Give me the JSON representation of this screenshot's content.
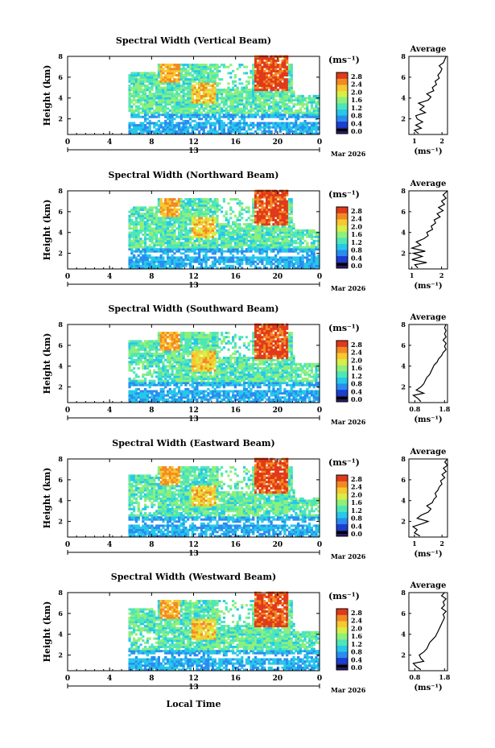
{
  "shared": {
    "x_ticks": [
      "0",
      "4",
      "8",
      "12",
      "16",
      "20",
      "0"
    ],
    "day_label": "13",
    "month_label": "Mar 2026",
    "ylabel": "Height (km)",
    "y_ticks": [
      "2",
      "4",
      "6",
      "8"
    ],
    "unit_label": "(ms⁻¹)",
    "colorbar_ticks": [
      "0.0",
      "0.4",
      "0.8",
      "1.2",
      "1.6",
      "2.0",
      "2.4",
      "2.8"
    ],
    "avg_title": "Average",
    "avg_unit": "(ms⁻¹)",
    "xlabel": "Local Time"
  },
  "colors": {
    "palette": [
      "#2a1a6e",
      "#1b3fd0",
      "#2a8cf0",
      "#27c8e8",
      "#4fe6b8",
      "#8ef07a",
      "#d8ee48",
      "#f8c830",
      "#f28a24",
      "#e03a1a"
    ]
  },
  "chart_data": [
    {
      "type": "heatmap",
      "title": "Spectral Width (Vertical Beam)",
      "avg_xticks": [
        "1",
        "2"
      ],
      "avg_xlim": [
        0.8,
        2.2
      ],
      "avg_profile": [
        [
          1.15,
          0.6
        ],
        [
          1.0,
          0.9
        ],
        [
          1.25,
          1.1
        ],
        [
          1.05,
          1.4
        ],
        [
          1.3,
          1.7
        ],
        [
          1.1,
          2.0
        ],
        [
          1.05,
          2.3
        ],
        [
          1.4,
          2.6
        ],
        [
          1.2,
          2.9
        ],
        [
          1.35,
          3.2
        ],
        [
          1.15,
          3.5
        ],
        [
          1.5,
          3.8
        ],
        [
          1.6,
          4.1
        ],
        [
          1.45,
          4.4
        ],
        [
          1.7,
          4.7
        ],
        [
          1.65,
          5.0
        ],
        [
          1.8,
          5.3
        ],
        [
          1.75,
          5.6
        ],
        [
          1.9,
          5.9
        ],
        [
          1.85,
          6.2
        ],
        [
          1.95,
          6.5
        ],
        [
          2.0,
          6.8
        ],
        [
          1.9,
          7.1
        ],
        [
          2.05,
          7.4
        ],
        [
          2.1,
          7.7
        ],
        [
          2.15,
          8.0
        ]
      ]
    },
    {
      "type": "heatmap",
      "title": "Spectral Width (Northward Beam)",
      "avg_xticks": [
        "1",
        "2"
      ],
      "avg_xlim": [
        0.9,
        2.2
      ],
      "avg_profile": [
        [
          1.2,
          0.6
        ],
        [
          1.1,
          0.9
        ],
        [
          1.5,
          1.1
        ],
        [
          1.0,
          1.4
        ],
        [
          1.35,
          1.7
        ],
        [
          1.05,
          2.0
        ],
        [
          1.45,
          2.2
        ],
        [
          1.0,
          2.5
        ],
        [
          1.3,
          2.8
        ],
        [
          1.15,
          3.1
        ],
        [
          1.4,
          3.4
        ],
        [
          1.55,
          3.7
        ],
        [
          1.5,
          4.0
        ],
        [
          1.7,
          4.3
        ],
        [
          1.65,
          4.6
        ],
        [
          1.8,
          4.9
        ],
        [
          1.75,
          5.2
        ],
        [
          1.95,
          5.5
        ],
        [
          1.85,
          5.8
        ],
        [
          2.05,
          6.1
        ],
        [
          1.9,
          6.4
        ],
        [
          2.1,
          6.7
        ],
        [
          2.0,
          7.0
        ],
        [
          2.15,
          7.3
        ],
        [
          2.05,
          7.6
        ],
        [
          2.2,
          8.0
        ]
      ]
    },
    {
      "type": "heatmap",
      "title": "Spectral Width (Southward Beam)",
      "avg_xticks": [
        "0.8",
        "1.8"
      ],
      "avg_xlim": [
        0.6,
        1.9
      ],
      "avg_profile": [
        [
          1.0,
          0.6
        ],
        [
          0.9,
          0.9
        ],
        [
          0.75,
          1.2
        ],
        [
          1.1,
          1.4
        ],
        [
          0.85,
          1.7
        ],
        [
          1.0,
          2.0
        ],
        [
          1.1,
          2.3
        ],
        [
          1.15,
          2.6
        ],
        [
          1.2,
          2.9
        ],
        [
          1.3,
          3.2
        ],
        [
          1.35,
          3.5
        ],
        [
          1.4,
          3.8
        ],
        [
          1.45,
          4.1
        ],
        [
          1.55,
          4.4
        ],
        [
          1.6,
          4.7
        ],
        [
          1.7,
          5.0
        ],
        [
          1.75,
          5.3
        ],
        [
          1.85,
          5.6
        ],
        [
          1.8,
          5.9
        ],
        [
          1.85,
          6.2
        ],
        [
          1.75,
          6.5
        ],
        [
          1.85,
          6.8
        ],
        [
          1.8,
          7.1
        ],
        [
          1.85,
          7.4
        ],
        [
          1.8,
          7.7
        ],
        [
          1.85,
          8.0
        ]
      ]
    },
    {
      "type": "heatmap",
      "title": "Spectral Width (Eastward Beam)",
      "avg_xticks": [
        "1",
        "2"
      ],
      "avg_xlim": [
        0.8,
        2.2
      ],
      "avg_profile": [
        [
          1.2,
          0.6
        ],
        [
          1.0,
          0.9
        ],
        [
          1.1,
          1.2
        ],
        [
          0.95,
          1.5
        ],
        [
          1.3,
          1.8
        ],
        [
          1.5,
          2.0
        ],
        [
          1.1,
          2.3
        ],
        [
          1.25,
          2.6
        ],
        [
          1.5,
          2.9
        ],
        [
          1.6,
          3.2
        ],
        [
          1.45,
          3.5
        ],
        [
          1.65,
          3.8
        ],
        [
          1.7,
          4.1
        ],
        [
          1.8,
          4.4
        ],
        [
          1.75,
          4.7
        ],
        [
          1.85,
          5.0
        ],
        [
          1.9,
          5.3
        ],
        [
          2.0,
          5.6
        ],
        [
          1.95,
          5.9
        ],
        [
          2.1,
          6.2
        ],
        [
          2.0,
          6.5
        ],
        [
          2.15,
          6.8
        ],
        [
          2.05,
          7.1
        ],
        [
          2.2,
          7.4
        ],
        [
          2.1,
          7.7
        ],
        [
          2.2,
          8.0
        ]
      ]
    },
    {
      "type": "heatmap",
      "title": "Spectral Width (Westward Beam)",
      "avg_xticks": [
        "0.8",
        "1.8"
      ],
      "avg_xlim": [
        0.6,
        1.9
      ],
      "avg_profile": [
        [
          1.0,
          0.6
        ],
        [
          0.85,
          0.9
        ],
        [
          0.75,
          1.2
        ],
        [
          1.1,
          1.4
        ],
        [
          1.0,
          1.7
        ],
        [
          0.95,
          2.0
        ],
        [
          1.1,
          2.3
        ],
        [
          1.2,
          2.6
        ],
        [
          1.25,
          2.9
        ],
        [
          1.3,
          3.2
        ],
        [
          1.4,
          3.5
        ],
        [
          1.5,
          3.8
        ],
        [
          1.55,
          4.1
        ],
        [
          1.6,
          4.4
        ],
        [
          1.65,
          4.7
        ],
        [
          1.7,
          5.0
        ],
        [
          1.75,
          5.3
        ],
        [
          1.8,
          5.6
        ],
        [
          1.75,
          5.9
        ],
        [
          1.85,
          6.2
        ],
        [
          1.7,
          6.5
        ],
        [
          1.8,
          6.8
        ],
        [
          1.75,
          7.1
        ],
        [
          1.85,
          7.4
        ],
        [
          1.7,
          7.7
        ],
        [
          1.8,
          8.0
        ]
      ]
    }
  ]
}
